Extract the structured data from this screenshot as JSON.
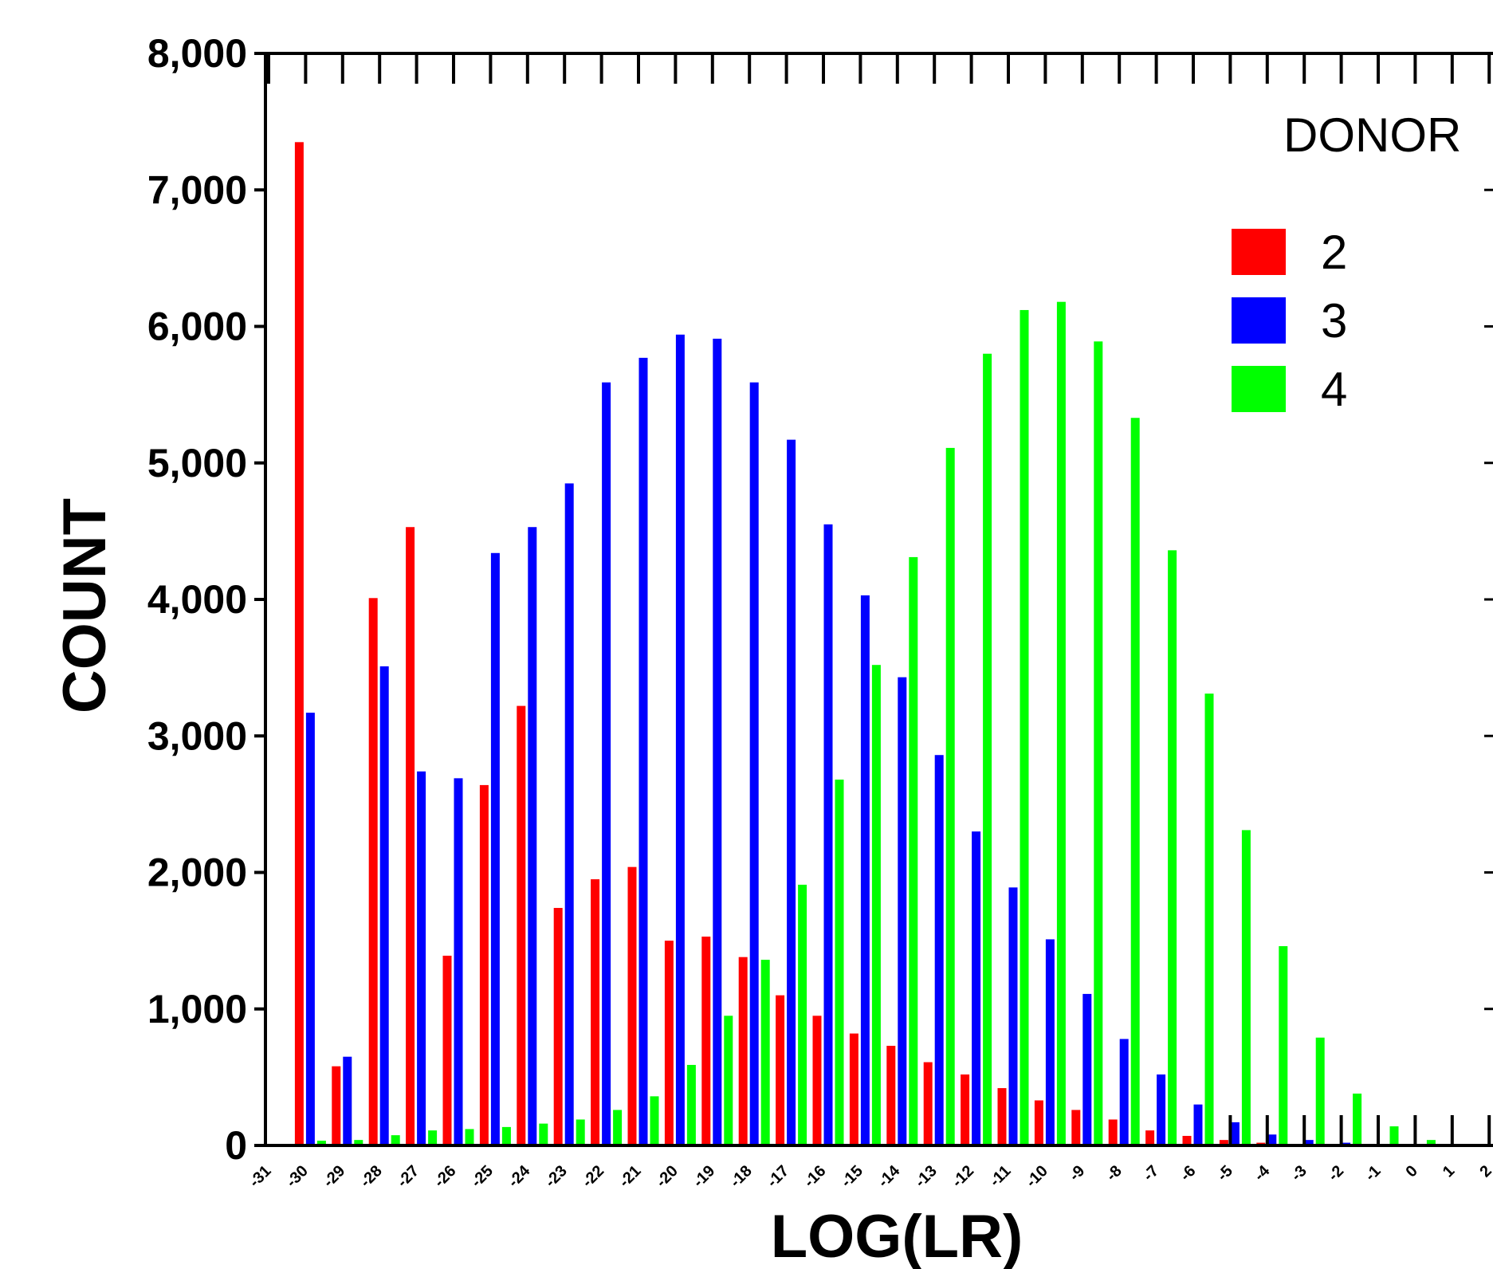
{
  "chart_data": {
    "type": "bar",
    "title": "",
    "xlabel": "LOG(LR)",
    "ylabel": "COUNT",
    "ylim": [
      0,
      8000
    ],
    "yticks": [
      0,
      1000,
      2000,
      3000,
      4000,
      5000,
      6000,
      7000,
      8000
    ],
    "ytick_labels": [
      "0",
      "1,000",
      "2,000",
      "3,000",
      "4,000",
      "5,000",
      "6,000",
      "7,000",
      "8,000"
    ],
    "categories": [
      "-31",
      "-30",
      "-29",
      "-28",
      "-27",
      "-26",
      "-25",
      "-24",
      "-23",
      "-22",
      "-21",
      "-20",
      "-19",
      "-18",
      "-17",
      "-16",
      "-15",
      "-14",
      "-13",
      "-12",
      "-11",
      "-10",
      "-9",
      "-8",
      "-7",
      "-6",
      "-5",
      "-4",
      "-3",
      "-2",
      "-1",
      "0",
      "1",
      "2"
    ],
    "legend_title": "DONOR",
    "legend_position": "top-right",
    "series": [
      {
        "name": "2",
        "color": "#ff0000",
        "values": [
          0,
          7350,
          580,
          4010,
          4530,
          1390,
          2640,
          3220,
          1740,
          1950,
          2040,
          1500,
          1530,
          1380,
          1100,
          950,
          820,
          730,
          610,
          520,
          420,
          330,
          260,
          190,
          110,
          70,
          40,
          20,
          10,
          5,
          3,
          2,
          1,
          0
        ]
      },
      {
        "name": "3",
        "color": "#0000ff",
        "values": [
          0,
          3170,
          650,
          3510,
          2740,
          2690,
          4340,
          4530,
          4850,
          5590,
          5770,
          5940,
          5910,
          5590,
          5170,
          4550,
          4030,
          3430,
          2860,
          2300,
          1890,
          1510,
          1110,
          780,
          520,
          300,
          170,
          80,
          40,
          20,
          10,
          5,
          2,
          0
        ]
      },
      {
        "name": "4",
        "color": "#00ff00",
        "values": [
          5,
          35,
          40,
          75,
          110,
          120,
          135,
          160,
          190,
          260,
          360,
          590,
          950,
          1360,
          1910,
          2680,
          3520,
          4310,
          5110,
          5800,
          6120,
          6180,
          5890,
          5330,
          4360,
          3310,
          2310,
          1460,
          790,
          380,
          140,
          40,
          10,
          0
        ]
      }
    ]
  }
}
